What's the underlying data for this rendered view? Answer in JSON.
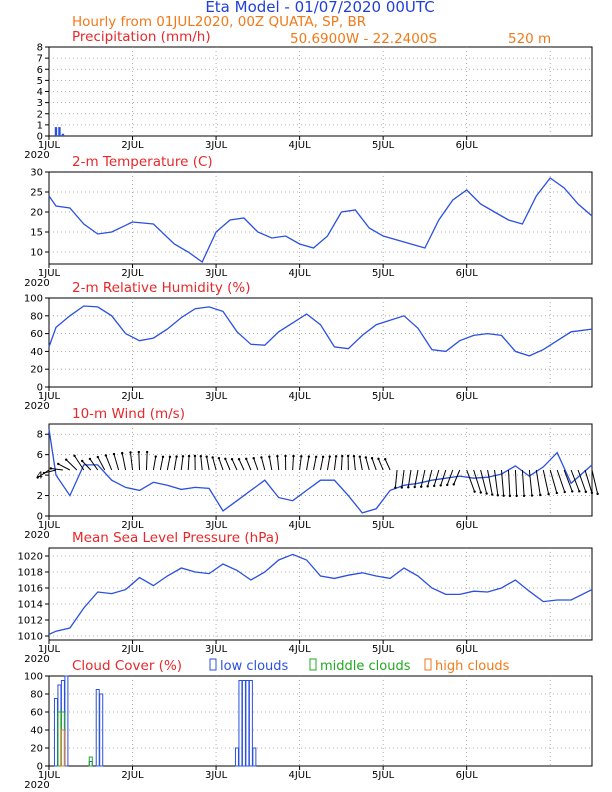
{
  "header": {
    "title": "Eta Model - 01/07/2020 00UTC",
    "subtitle": "Hourly from 01JUL2020, 00Z  QUATA, SP, BR",
    "location": "50.6900W - 22.2400S",
    "elevation": "520  m"
  },
  "colors": {
    "title": "#1f3fd8",
    "subtitle": "#f07a1a",
    "panel_title": "#e8282a",
    "series": "#2b50e0",
    "wind": "#000000",
    "low_clouds": "#2b50e0",
    "middle_clouds": "#1faa1f",
    "high_clouds": "#f07a1a"
  },
  "x_axis": {
    "tick_labels": [
      "1JUL",
      "2JUL",
      "3JUL",
      "4JUL",
      "5JUL",
      "6JUL"
    ],
    "year_label": "2020"
  },
  "chart_data": [
    {
      "id": "precipitation",
      "type": "bar",
      "title": "Precipitation (mm/h)",
      "ylim": [
        0,
        8
      ],
      "yticks": [
        0,
        1,
        2,
        3,
        4,
        5,
        6,
        7,
        8
      ],
      "x_hours": [
        2,
        3,
        4
      ],
      "values": [
        0.8,
        0.8,
        0.2
      ]
    },
    {
      "id": "temperature",
      "type": "line",
      "title": "2-m Temperature (C)",
      "ylim": [
        7,
        30
      ],
      "yticks": [
        10,
        15,
        20,
        25,
        30
      ],
      "x": [
        0,
        2,
        6,
        10,
        14,
        18,
        24,
        30,
        36,
        40,
        44,
        48,
        52,
        56,
        60,
        64,
        68,
        72,
        76,
        80,
        84,
        88,
        92,
        96,
        100,
        104,
        108,
        112,
        116,
        120,
        124,
        128,
        132,
        136,
        140,
        144,
        148,
        152,
        156
      ],
      "values": [
        24,
        21.5,
        21,
        17,
        14.5,
        15,
        17.5,
        17,
        12,
        10,
        7.5,
        15,
        18,
        18.5,
        15,
        13.5,
        14,
        12,
        11,
        14,
        20,
        20.5,
        16,
        14,
        13,
        12,
        11,
        18,
        23,
        25.5,
        22,
        20,
        18,
        17,
        24,
        28.5,
        26,
        22,
        19
      ]
    },
    {
      "id": "humidity",
      "type": "line",
      "title": "2-m Relative Humidity (%)",
      "ylim": [
        0,
        100
      ],
      "yticks": [
        0,
        20,
        40,
        60,
        80,
        100
      ],
      "x": [
        0,
        2,
        6,
        10,
        14,
        18,
        22,
        26,
        30,
        34,
        38,
        42,
        46,
        50,
        54,
        58,
        62,
        66,
        70,
        74,
        78,
        82,
        86,
        90,
        94,
        98,
        102,
        106,
        110,
        114,
        118,
        122,
        126,
        130,
        134,
        138,
        142,
        146,
        150,
        156
      ],
      "values": [
        45,
        67,
        80,
        91,
        90,
        80,
        60,
        52,
        55,
        65,
        78,
        88,
        90,
        85,
        62,
        48,
        47,
        62,
        72,
        82,
        70,
        45,
        43,
        58,
        70,
        75,
        80,
        66,
        42,
        40,
        52,
        58,
        60,
        58,
        40,
        35,
        42,
        52,
        62,
        65
      ]
    },
    {
      "id": "wind",
      "type": "line",
      "title": "10-m Wind (m/s)",
      "ylim": [
        0,
        9
      ],
      "yticks": [
        0,
        2,
        4,
        6,
        8
      ],
      "x": [
        0,
        2,
        6,
        10,
        14,
        18,
        22,
        26,
        30,
        34,
        38,
        42,
        46,
        50,
        54,
        58,
        62,
        66,
        70,
        74,
        78,
        82,
        86,
        90,
        94,
        98,
        102,
        106,
        110,
        114,
        118,
        122,
        126,
        130,
        134,
        138,
        142,
        146,
        150,
        156
      ],
      "values": [
        8.5,
        4,
        2,
        5,
        5,
        3.5,
        2.8,
        2.5,
        3.3,
        3,
        2.6,
        2.8,
        2.7,
        0.5,
        1.5,
        2.5,
        3.5,
        1.8,
        1.5,
        2.5,
        3.5,
        3.5,
        2.0,
        0.3,
        0.7,
        2.5,
        3.0,
        3.2,
        3.5,
        3.7,
        3.9,
        3.7,
        3.8,
        4.1,
        4.9,
        3.9,
        4.8,
        6.2,
        3.2,
        5.0
      ],
      "barbs_y": 4.5
    },
    {
      "id": "pressure",
      "type": "line",
      "title": "Mean Sea Level Pressure (hPa)",
      "ylim": [
        1009.5,
        1021
      ],
      "yticks": [
        1010,
        1012,
        1014,
        1016,
        1018,
        1020
      ],
      "x": [
        0,
        2,
        6,
        10,
        14,
        18,
        22,
        26,
        30,
        34,
        38,
        42,
        46,
        50,
        54,
        58,
        62,
        66,
        70,
        74,
        78,
        82,
        86,
        90,
        94,
        98,
        102,
        106,
        110,
        114,
        118,
        122,
        126,
        130,
        134,
        138,
        142,
        146,
        150,
        156
      ],
      "values": [
        1010.2,
        1010.6,
        1011,
        1013.5,
        1015.5,
        1015.3,
        1015.8,
        1017.3,
        1016.3,
        1017.5,
        1018.5,
        1018.0,
        1017.8,
        1019.0,
        1018.2,
        1017.0,
        1018.0,
        1019.5,
        1020.2,
        1019.5,
        1017.5,
        1017.2,
        1017.6,
        1017.9,
        1017.5,
        1017.2,
        1018.5,
        1017.5,
        1016.0,
        1015.2,
        1015.2,
        1015.6,
        1015.5,
        1016.0,
        1017.0,
        1015.6,
        1014.3,
        1014.5,
        1014.5,
        1015.8
      ]
    },
    {
      "id": "cloud_cover",
      "type": "bar",
      "title": "Cloud Cover (%)",
      "legend": [
        "low clouds",
        "middle clouds",
        "high clouds"
      ],
      "ylim": [
        0,
        100
      ],
      "yticks": [
        0,
        20,
        40,
        60,
        80,
        100
      ],
      "series": [
        {
          "name": "low clouds",
          "x_hours": [
            2,
            3,
            4,
            5,
            12,
            14,
            15,
            54,
            55,
            56,
            57,
            58,
            59
          ],
          "values": [
            75,
            90,
            95,
            100,
            5,
            85,
            80,
            20,
            95,
            95,
            95,
            95,
            20
          ]
        },
        {
          "name": "middle clouds",
          "x_hours": [
            3,
            4,
            12
          ],
          "values": [
            60,
            60,
            10
          ]
        },
        {
          "name": "high clouds",
          "x_hours": [
            4
          ],
          "values": [
            40
          ]
        }
      ]
    }
  ]
}
